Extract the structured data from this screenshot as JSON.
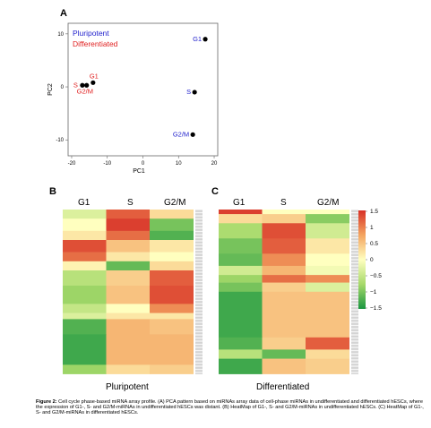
{
  "panels": {
    "a": "A",
    "b": "B",
    "c": "C"
  },
  "pca": {
    "legend": {
      "pluripotent": "Pluripotent",
      "differentiated": "Differentiated"
    },
    "colors": {
      "pluripotent": "#1f1fcc",
      "differentiated": "#e01f1f"
    },
    "xlabel": "PC1",
    "ylabel": "PC2",
    "xticks": [
      "-20",
      "-10",
      "0",
      "10",
      "20"
    ],
    "yticks": [
      "10",
      "0",
      "-10"
    ]
  },
  "chart_data": {
    "type": "scatter",
    "xlabel": "PC1",
    "ylabel": "PC2",
    "xlim": [
      -21,
      21
    ],
    "ylim": [
      -13,
      12
    ],
    "series": [
      {
        "name": "Pluripotent",
        "color": "#1f1fcc",
        "points": [
          {
            "label": "G1",
            "x": 17.5,
            "y": 9.0
          },
          {
            "label": "S",
            "x": 14.5,
            "y": -1.0
          },
          {
            "label": "G2/M",
            "x": 14.0,
            "y": -9.0
          }
        ]
      },
      {
        "name": "Differentiated",
        "color": "#e01f1f",
        "points": [
          {
            "label": "S",
            "x": -17.0,
            "y": 0.3
          },
          {
            "label": "G1",
            "x": -14.0,
            "y": 0.8
          },
          {
            "label": "G2/M",
            "x": -15.8,
            "y": 0.3
          }
        ]
      }
    ]
  },
  "heatmap_b": {
    "cols": [
      "G1",
      "S",
      "G2/M"
    ],
    "title": "Pluripotent"
  },
  "heatmap_c": {
    "cols": [
      "G1",
      "S",
      "G2/M"
    ],
    "title": "Differentiated"
  },
  "colorbar": {
    "ticks": [
      "1.5",
      "1",
      "0.5",
      "0",
      "−0.5",
      "−1",
      "−1.5"
    ]
  },
  "caption": {
    "label": "Figure 2:",
    "text": " Cell cycle phase-based miRNA array profile. (A) PCA pattern based on miRNAs array data of cell-phase miRNAs in undifferentiated and differentiated hESCs, where the expression of G1-, S- and G2/M-miRNAs in undifferentiated hESCs was distant. (B) HeatMap of G1-, S- and G2/M-miRNAs in undifferentiated hESCs. (C) HeatMap of G1-, S- and G2/M-miRNAs in differentiated hESCs."
  }
}
